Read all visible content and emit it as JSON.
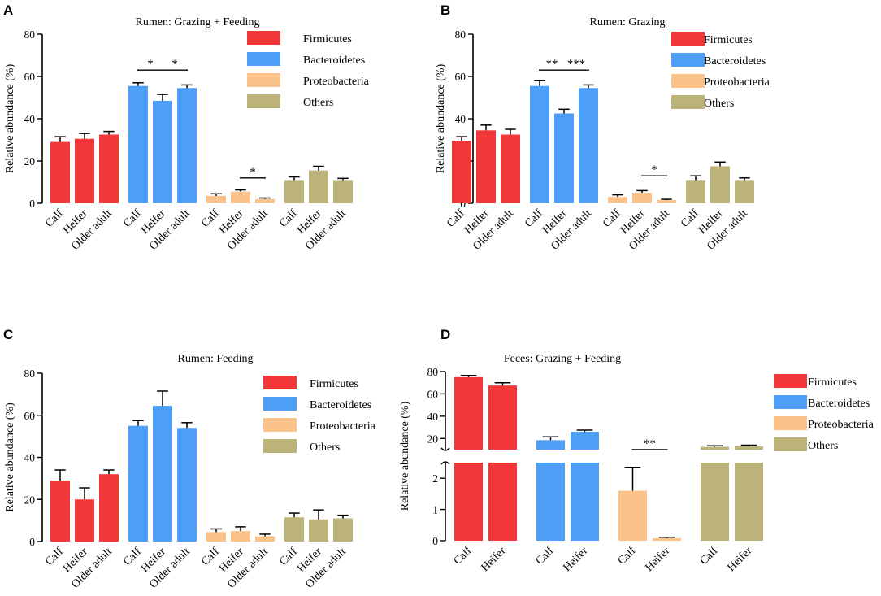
{
  "colors": {
    "Firmicutes": "#f2373a",
    "Bacteroidetes": "#4d9ef6",
    "Proteobacteria": "#fbc38a",
    "Others": "#bcb37a"
  },
  "legend": [
    "Firmicutes",
    "Bacteroidetes",
    "Proteobacteria",
    "Others"
  ],
  "chart_data": [
    {
      "type": "bar",
      "panel": "A",
      "title": "Rumen: Grazing + Feeding",
      "ylabel": "Relative abundance (%)",
      "ylim": [
        0,
        80
      ],
      "yticks": [
        "0",
        "20",
        "40",
        "60",
        "80"
      ],
      "categories": [
        "Calf",
        "Heifer",
        "Older adult"
      ],
      "series": [
        {
          "name": "Firmicutes",
          "values": [
            29,
            30.5,
            32.5
          ],
          "errors": [
            2.5,
            2.5,
            1.5
          ]
        },
        {
          "name": "Bacteroidetes",
          "values": [
            55.5,
            48.5,
            54.5
          ],
          "errors": [
            1.5,
            3,
            1.5
          ]
        },
        {
          "name": "Proteobacteria",
          "values": [
            3.5,
            5.5,
            2
          ],
          "errors": [
            1,
            0.8,
            0.5
          ]
        },
        {
          "name": "Others",
          "values": [
            11,
            15.5,
            11
          ],
          "errors": [
            1.5,
            2,
            0.8
          ]
        }
      ],
      "annotations": [
        {
          "series": "Bacteroidetes",
          "from": 0,
          "to": 1,
          "label": "*",
          "y": 63
        },
        {
          "series": "Bacteroidetes",
          "from": 1,
          "to": 2,
          "label": "*",
          "y": 63
        },
        {
          "series": "Proteobacteria",
          "from": 1,
          "to": 2,
          "label": "*",
          "y": 12
        }
      ]
    },
    {
      "type": "bar",
      "panel": "B",
      "title": "Rumen: Grazing",
      "ylabel": "Relative abundance (%)",
      "ylim": [
        0,
        80
      ],
      "yticks": [
        "0",
        "20",
        "40",
        "60",
        "80"
      ],
      "categories": [
        "Calf",
        "Heifer",
        "Older adult"
      ],
      "series": [
        {
          "name": "Firmicutes",
          "values": [
            29.5,
            34.5,
            32.5
          ],
          "errors": [
            2,
            2.5,
            2.5
          ]
        },
        {
          "name": "Bacteroidetes",
          "values": [
            55.5,
            42.5,
            54.5
          ],
          "errors": [
            2.5,
            2,
            1.5
          ]
        },
        {
          "name": "Proteobacteria",
          "values": [
            3,
            5,
            1.5
          ],
          "errors": [
            1,
            1,
            0.4
          ]
        },
        {
          "name": "Others",
          "values": [
            11,
            17.5,
            11
          ],
          "errors": [
            2,
            2,
            1
          ]
        }
      ],
      "annotations": [
        {
          "series": "Bacteroidetes",
          "from": 0,
          "to": 1,
          "label": "**",
          "y": 63
        },
        {
          "series": "Bacteroidetes",
          "from": 1,
          "to": 2,
          "label": "***",
          "y": 63
        },
        {
          "series": "Proteobacteria",
          "from": 1,
          "to": 2,
          "label": "*",
          "y": 13
        }
      ]
    },
    {
      "type": "bar",
      "panel": "C",
      "title": "Rumen: Feeding",
      "ylabel": "Relative abundance (%)",
      "ylim": [
        0,
        80
      ],
      "yticks": [
        "0",
        "20",
        "40",
        "60",
        "80"
      ],
      "categories": [
        "Calf",
        "Heifer",
        "Older adult"
      ],
      "series": [
        {
          "name": "Firmicutes",
          "values": [
            29,
            20,
            32
          ],
          "errors": [
            5,
            5.5,
            2
          ]
        },
        {
          "name": "Bacteroidetes",
          "values": [
            55,
            64.5,
            54
          ],
          "errors": [
            2.5,
            7,
            2.5
          ]
        },
        {
          "name": "Proteobacteria",
          "values": [
            4.5,
            5,
            2.5
          ],
          "errors": [
            1.5,
            2,
            1
          ]
        },
        {
          "name": "Others",
          "values": [
            11.5,
            10.5,
            11
          ],
          "errors": [
            2,
            4.5,
            1.5
          ]
        }
      ],
      "annotations": []
    },
    {
      "type": "bar",
      "panel": "D",
      "title": "Feces: Grazing + Feeding",
      "ylabel": "Relative abundance (%)",
      "axis_break": true,
      "ylim_lower": [
        0,
        2.5
      ],
      "yticks_lower": [
        "0",
        "1",
        "2"
      ],
      "ylim_upper": [
        10,
        80
      ],
      "yticks_upper": [
        "20",
        "40",
        "60",
        "80"
      ],
      "categories": [
        "Calf",
        "Heifer"
      ],
      "series": [
        {
          "name": "Firmicutes",
          "values": [
            75,
            67.5
          ],
          "errors": [
            1.5,
            2.5
          ]
        },
        {
          "name": "Bacteroidetes",
          "values": [
            18.5,
            26
          ],
          "errors": [
            3,
            1.5
          ]
        },
        {
          "name": "Proteobacteria",
          "values": [
            1.6,
            0.08
          ],
          "errors": [
            0.75,
            0.03
          ]
        },
        {
          "name": "Others",
          "values": [
            12.5,
            13
          ],
          "errors": [
            1,
            1
          ]
        }
      ],
      "annotations": [
        {
          "series": "Proteobacteria",
          "from": 0,
          "to": 1,
          "label": "**",
          "y": 6.5
        }
      ]
    }
  ]
}
